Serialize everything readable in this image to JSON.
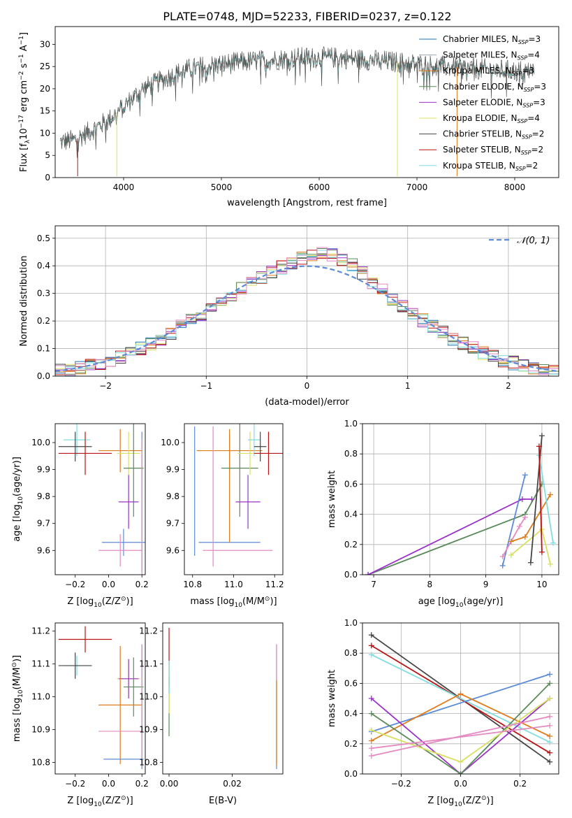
{
  "title": "PLATE=0748, MJD=52233, FIBERID=0237, z=0.122",
  "colors": {
    "chabrier_miles": "#1f77b4",
    "salpeter_miles": "#9aa6b2",
    "kroupa_miles": "#e07b1a",
    "chabrier_elodie": "#5a8a5a",
    "salpeter_elodie": "#9b30c8",
    "kroupa_elodie": "#d8e060",
    "chabrier_stelib": "#444444",
    "salpeter_stelib": "#b81414",
    "kroupa_stelib": "#80dede",
    "gauss": "#5b8bd6",
    "extra_blue": "#5b8bd6",
    "extra_pink": "#e58ac0"
  },
  "chart_data": [
    {
      "id": "spectrum",
      "type": "line",
      "xlabel": "wavelength [Angstrom, rest frame]",
      "ylabel_parts": [
        "Flux [f",
        "λ",
        "10",
        "−17",
        " erg cm",
        "−2",
        " s",
        "−1",
        " A",
        "−1",
        "]"
      ],
      "xlim": [
        3300,
        8450
      ],
      "ylim": [
        0,
        34
      ],
      "xticks": [
        4000,
        5000,
        6000,
        7000,
        8000
      ],
      "yticks": [
        0,
        5,
        10,
        15,
        20,
        25,
        30
      ],
      "legend_position": "top-right",
      "legend": [
        {
          "imf": "Chabrier",
          "lib": "MILES",
          "n": "3",
          "color_key": "chabrier_miles"
        },
        {
          "imf": "Salpeter",
          "lib": "MILES",
          "n": "4",
          "color_key": "salpeter_miles"
        },
        {
          "imf": "Kroupa",
          "lib": "MILES",
          "n": "3",
          "color_key": "kroupa_miles"
        },
        {
          "imf": "Chabrier",
          "lib": "ELODIE",
          "n": "3",
          "color_key": "chabrier_elodie"
        },
        {
          "imf": "Salpeter",
          "lib": "ELODIE",
          "n": "3",
          "color_key": "salpeter_elodie"
        },
        {
          "imf": "Kroupa",
          "lib": "ELODIE",
          "n": "4",
          "color_key": "kroupa_elodie"
        },
        {
          "imf": "Chabrier",
          "lib": "STELIB",
          "n": "2",
          "color_key": "chabrier_stelib"
        },
        {
          "imf": "Salpeter",
          "lib": "STELIB",
          "n": "2",
          "color_key": "salpeter_stelib"
        },
        {
          "imf": "Kroupa",
          "lib": "STELIB",
          "n": "2",
          "color_key": "kroupa_stelib"
        }
      ],
      "continuum": [
        [
          3350,
          8
        ],
        [
          3500,
          8.5
        ],
        [
          3700,
          11
        ],
        [
          3850,
          13
        ],
        [
          3950,
          15
        ],
        [
          4050,
          17
        ],
        [
          4200,
          20
        ],
        [
          4400,
          22
        ],
        [
          4600,
          24
        ],
        [
          4800,
          25
        ],
        [
          5000,
          25.5
        ],
        [
          5200,
          26
        ],
        [
          5500,
          26.5
        ],
        [
          5800,
          27
        ],
        [
          6000,
          27
        ],
        [
          6200,
          27
        ],
        [
          6500,
          26.5
        ],
        [
          6800,
          26
        ],
        [
          7000,
          25.5
        ],
        [
          7300,
          25
        ],
        [
          7600,
          24.5
        ],
        [
          8000,
          24
        ],
        [
          8200,
          24
        ]
      ],
      "dips": [
        {
          "x": 3530,
          "y": 0.3,
          "color_key": "salpeter_stelib"
        },
        {
          "x": 3930,
          "y": 0.3,
          "color_key": "kroupa_elodie"
        },
        {
          "x": 6800,
          "y": 0.3,
          "color_key": "kroupa_elodie"
        },
        {
          "x": 7410,
          "y": 0.3,
          "color_key": "kroupa_miles"
        }
      ]
    },
    {
      "id": "residuals",
      "type": "histogram",
      "xlabel": "(data-model)/error",
      "ylabel": "Normed distribution",
      "xlim": [
        -2.5,
        2.5
      ],
      "ylim": [
        0,
        0.545
      ],
      "xticks": [
        -2,
        -1,
        0,
        1,
        2
      ],
      "yticks": [
        0.0,
        0.1,
        0.2,
        0.3,
        0.4,
        0.5
      ],
      "bin_width": 0.1,
      "grid": true,
      "legend_position": "top-right",
      "gaussian_label": "𝒩(0, 1)"
    },
    {
      "id": "age_vs_Z",
      "type": "errorbar",
      "xlabel_parts": [
        "Z [log",
        "10",
        "(Z/Z",
        "⊙",
        ")]"
      ],
      "ylabel_parts": [
        "age  [log",
        "10",
        "(age/yr)]"
      ],
      "xlim": [
        -0.32,
        0.22
      ],
      "ylim": [
        9.51,
        10.07
      ],
      "xticks": [
        -0.2,
        0.0,
        0.2
      ],
      "yticks": [
        9.6,
        9.7,
        9.8,
        9.9,
        10.0
      ],
      "points": [
        {
          "x": -0.19,
          "xerr": 0.08,
          "y": 10.01,
          "yerr": 0.06,
          "color_key": "kroupa_stelib"
        },
        {
          "x": -0.14,
          "xerr": 0.16,
          "y": 9.96,
          "yerr": 0.08,
          "color_key": "salpeter_stelib"
        },
        {
          "x": -0.2,
          "xerr": 0.1,
          "y": 9.985,
          "yerr": 0.055,
          "color_key": "chabrier_stelib"
        },
        {
          "x": 0.07,
          "xerr": 0.13,
          "y": 9.97,
          "yerr": 0.08,
          "color_key": "kroupa_miles"
        },
        {
          "x": 0.12,
          "xerr": 0.07,
          "y": 9.96,
          "yerr": 0.08,
          "color_key": "kroupa_elodie"
        },
        {
          "x": 0.15,
          "xerr": 0.06,
          "y": 9.905,
          "yerr": 0.18,
          "color_key": "chabrier_elodie"
        },
        {
          "x": 0.12,
          "xerr": 0.06,
          "y": 9.78,
          "yerr": 0.1,
          "color_key": "salpeter_elodie"
        },
        {
          "x": 0.09,
          "xerr": 0.13,
          "y": 9.63,
          "yerr": 0.05,
          "color_key": "extra_blue"
        },
        {
          "x": 0.07,
          "xerr": 0.13,
          "y": 9.6,
          "yerr": 0.06,
          "color_key": "extra_pink"
        },
        {
          "x": 0.2,
          "xerr": 0.0,
          "y": 9.78,
          "yerr": 0.26,
          "color_key": "extra_blue"
        },
        {
          "x": 0.2,
          "xerr": 0.0,
          "y": 9.76,
          "yerr": 0.25,
          "color_key": "extra_pink"
        }
      ]
    },
    {
      "id": "age_vs_mass",
      "type": "errorbar",
      "xlabel_parts": [
        "mass [log",
        "10",
        "(M/M",
        "⊙",
        ")]"
      ],
      "xlim": [
        10.76,
        11.24
      ],
      "ylim": [
        9.51,
        10.07
      ],
      "xticks": [
        10.8,
        11.0,
        11.2
      ],
      "yticks": [
        9.6,
        9.7,
        9.8,
        9.9,
        10.0
      ],
      "points": [
        {
          "x": 10.81,
          "xerr": 0.0,
          "y": 9.82,
          "yerr": 0.24,
          "color_key": "extra_blue"
        },
        {
          "x": 10.98,
          "xerr": 0.15,
          "y": 9.63,
          "yerr": 0.0,
          "color_key": "extra_blue"
        },
        {
          "x": 10.98,
          "xerr": 0.16,
          "y": 9.97,
          "yerr": 0.08,
          "color_key": "kroupa_miles"
        },
        {
          "x": 10.98,
          "xerr": 0.0,
          "y": 9.83,
          "yerr": 0.2,
          "color_key": "kroupa_miles"
        },
        {
          "x": 10.9,
          "xerr": 0.0,
          "y": 9.8,
          "yerr": 0.26,
          "color_key": "extra_pink"
        },
        {
          "x": 11.02,
          "xerr": 0.17,
          "y": 9.6,
          "yerr": 0.0,
          "color_key": "extra_pink"
        },
        {
          "x": 11.03,
          "xerr": 0.09,
          "y": 9.905,
          "yerr": 0.18,
          "color_key": "chabrier_elodie"
        },
        {
          "x": 11.07,
          "xerr": 0.06,
          "y": 9.78,
          "yerr": 0.1,
          "color_key": "salpeter_elodie"
        },
        {
          "x": 11.08,
          "xerr": 0.06,
          "y": 9.96,
          "yerr": 0.08,
          "color_key": "kroupa_elodie"
        },
        {
          "x": 11.1,
          "xerr": 0.03,
          "y": 10.01,
          "yerr": 0.06,
          "color_key": "kroupa_stelib"
        },
        {
          "x": 11.13,
          "xerr": 0.03,
          "y": 9.985,
          "yerr": 0.055,
          "color_key": "chabrier_stelib"
        },
        {
          "x": 11.17,
          "xerr": 0.07,
          "y": 9.96,
          "yerr": 0.08,
          "color_key": "salpeter_stelib"
        }
      ]
    },
    {
      "id": "massweight_vs_age",
      "type": "line",
      "xlabel_parts": [
        "age  [log",
        "10",
        "(age/yr)]"
      ],
      "ylabel": "mass weight",
      "xlim": [
        6.8,
        10.3
      ],
      "ylim": [
        0,
        1
      ],
      "xticks": [
        7,
        8,
        9,
        10
      ],
      "yticks": [
        0.0,
        0.2,
        0.4,
        0.6,
        0.8,
        1.0
      ],
      "grid": true,
      "series": [
        {
          "color_key": "chabrier_elodie",
          "points": [
            [
              6.9,
              0.0
            ],
            [
              9.7,
              0.4
            ],
            [
              10.0,
              0.6
            ]
          ]
        },
        {
          "color_key": "salpeter_elodie",
          "points": [
            [
              6.9,
              0.0
            ],
            [
              9.65,
              0.5
            ],
            [
              9.82,
              0.5
            ]
          ]
        },
        {
          "color_key": "extra_blue",
          "points": [
            [
              9.3,
              0.06
            ],
            [
              9.7,
              0.66
            ]
          ]
        },
        {
          "color_key": "extra_pink",
          "points": [
            [
              9.3,
              0.12
            ],
            [
              9.6,
              0.32
            ],
            [
              9.7,
              0.38
            ]
          ]
        },
        {
          "color_key": "kroupa_miles",
          "points": [
            [
              9.45,
              0.22
            ],
            [
              9.7,
              0.25
            ],
            [
              10.15,
              0.53
            ]
          ]
        },
        {
          "color_key": "kroupa_elodie",
          "points": [
            [
              9.45,
              0.13
            ],
            [
              10.0,
              0.3
            ],
            [
              10.15,
              0.07
            ]
          ]
        },
        {
          "color_key": "kroupa_stelib",
          "points": [
            [
              9.95,
              0.79
            ],
            [
              10.2,
              0.21
            ]
          ]
        },
        {
          "color_key": "chabrier_stelib",
          "points": [
            [
              9.8,
              0.08
            ],
            [
              10.0,
              0.92
            ]
          ]
        },
        {
          "color_key": "salpeter_stelib",
          "points": [
            [
              9.95,
              0.85
            ],
            [
              10.0,
              0.15
            ]
          ]
        }
      ]
    },
    {
      "id": "mass_vs_Z",
      "type": "errorbar",
      "xlabel_parts": [
        "Z [log",
        "10",
        "(Z/Z",
        "⊙",
        ")]"
      ],
      "ylabel_parts": [
        "mass [log",
        "10",
        "(M/M",
        "⊙",
        ")]"
      ],
      "xlim": [
        -0.32,
        0.22
      ],
      "ylim": [
        10.765,
        11.225
      ],
      "xticks": [
        -0.2,
        0.0,
        0.2
      ],
      "yticks": [
        10.8,
        10.9,
        11.0,
        11.1,
        11.2
      ],
      "points": [
        {
          "x": -0.14,
          "xerr": 0.16,
          "y": 11.175,
          "yerr": 0.04,
          "color_key": "salpeter_stelib"
        },
        {
          "x": -0.19,
          "xerr": 0.08,
          "y": 11.095,
          "yerr": 0.03,
          "color_key": "kroupa_stelib"
        },
        {
          "x": -0.2,
          "xerr": 0.1,
          "y": 11.095,
          "yerr": 0.04,
          "color_key": "chabrier_stelib"
        },
        {
          "x": 0.12,
          "xerr": 0.07,
          "y": 11.055,
          "yerr": 0.06,
          "color_key": "kroupa_elodie"
        },
        {
          "x": 0.12,
          "xerr": 0.06,
          "y": 11.055,
          "yerr": 0.06,
          "color_key": "salpeter_elodie"
        },
        {
          "x": 0.15,
          "xerr": 0.06,
          "y": 11.03,
          "yerr": 0.09,
          "color_key": "chabrier_elodie"
        },
        {
          "x": 0.07,
          "xerr": 0.13,
          "y": 10.975,
          "yerr": 0.18,
          "color_key": "kroupa_miles"
        },
        {
          "x": 0.07,
          "xerr": 0.13,
          "y": 10.895,
          "yerr": 0.0,
          "color_key": "extra_pink"
        },
        {
          "x": 0.09,
          "xerr": 0.12,
          "y": 10.81,
          "yerr": 0.0,
          "color_key": "extra_blue"
        },
        {
          "x": 0.2,
          "xerr": 0.0,
          "y": 10.97,
          "yerr": 0.19,
          "color_key": "extra_blue"
        },
        {
          "x": 0.2,
          "xerr": 0.0,
          "y": 10.98,
          "yerr": 0.18,
          "color_key": "extra_pink"
        }
      ]
    },
    {
      "id": "mass_vs_ebv",
      "type": "errorbar",
      "xlabel": "E(B-V)",
      "xlim": [
        -0.002,
        0.036
      ],
      "ylim": [
        10.765,
        11.225
      ],
      "xticks": [
        0.0,
        0.02
      ],
      "tick_labels_x": [
        "0.00",
        "0.02"
      ],
      "yticks": [
        10.8,
        10.9,
        11.0,
        11.1,
        11.2
      ],
      "points": [
        {
          "x": 0.0,
          "xerr": 0.0,
          "y": 11.12,
          "yerr": 0.09,
          "color_key": "salpeter_stelib"
        },
        {
          "x": 0.0,
          "xerr": 0.0,
          "y": 10.97,
          "yerr": 0.09,
          "color_key": "chabrier_elodie"
        },
        {
          "x": 0.0,
          "xerr": 0.0,
          "y": 11.02,
          "yerr": 0.07,
          "color_key": "kroupa_elodie"
        },
        {
          "x": 0.0,
          "xerr": 0.0,
          "y": 11.06,
          "yerr": 0.05,
          "color_key": "kroupa_stelib"
        },
        {
          "x": 0.034,
          "xerr": 0.0,
          "y": 10.97,
          "yerr": 0.19,
          "color_key": "extra_blue"
        },
        {
          "x": 0.034,
          "xerr": 0.0,
          "y": 10.98,
          "yerr": 0.18,
          "color_key": "extra_pink"
        },
        {
          "x": 0.034,
          "xerr": 0.0,
          "y": 10.92,
          "yerr": 0.13,
          "color_key": "kroupa_miles"
        }
      ]
    },
    {
      "id": "massweight_vs_Z",
      "type": "line",
      "xlabel_parts": [
        "Z [log",
        "10",
        "(Z/Z",
        "⊙",
        ")]"
      ],
      "ylabel": "mass weight",
      "xlim": [
        -0.33,
        0.33
      ],
      "ylim": [
        0,
        1
      ],
      "xticks": [
        -0.2,
        0.0,
        0.2
      ],
      "yticks": [
        0.0,
        0.2,
        0.4,
        0.6,
        0.8,
        1.0
      ],
      "grid": true,
      "series": [
        {
          "color_key": "chabrier_stelib",
          "points": [
            [
              -0.3,
              0.92
            ],
            [
              0.3,
              0.08
            ]
          ]
        },
        {
          "color_key": "salpeter_stelib",
          "points": [
            [
              -0.3,
              0.85
            ],
            [
              0.3,
              0.14
            ]
          ]
        },
        {
          "color_key": "kroupa_stelib",
          "points": [
            [
              -0.3,
              0.79
            ],
            [
              0.3,
              0.21
            ]
          ]
        },
        {
          "color_key": "extra_blue",
          "points": [
            [
              -0.3,
              0.28
            ],
            [
              0.3,
              0.66
            ]
          ]
        },
        {
          "color_key": "kroupa_miles",
          "points": [
            [
              -0.3,
              0.22
            ],
            [
              0.0,
              0.53
            ],
            [
              0.3,
              0.25
            ]
          ]
        },
        {
          "color_key": "salpeter_elodie",
          "points": [
            [
              -0.3,
              0.5
            ],
            [
              0.0,
              0.0
            ],
            [
              0.3,
              0.5
            ]
          ]
        },
        {
          "color_key": "chabrier_elodie",
          "points": [
            [
              -0.3,
              0.4
            ],
            [
              0.0,
              0.0
            ],
            [
              0.3,
              0.6
            ]
          ]
        },
        {
          "color_key": "kroupa_elodie",
          "points": [
            [
              -0.3,
              0.29
            ],
            [
              0.0,
              0.08
            ],
            [
              0.3,
              0.5
            ]
          ]
        },
        {
          "color_key": "extra_pink",
          "points": [
            [
              -0.3,
              0.17
            ],
            [
              0.3,
              0.32
            ]
          ]
        },
        {
          "color_key": "extra_pink",
          "points": [
            [
              -0.3,
              0.12
            ],
            [
              0.3,
              0.38
            ]
          ]
        }
      ]
    }
  ]
}
